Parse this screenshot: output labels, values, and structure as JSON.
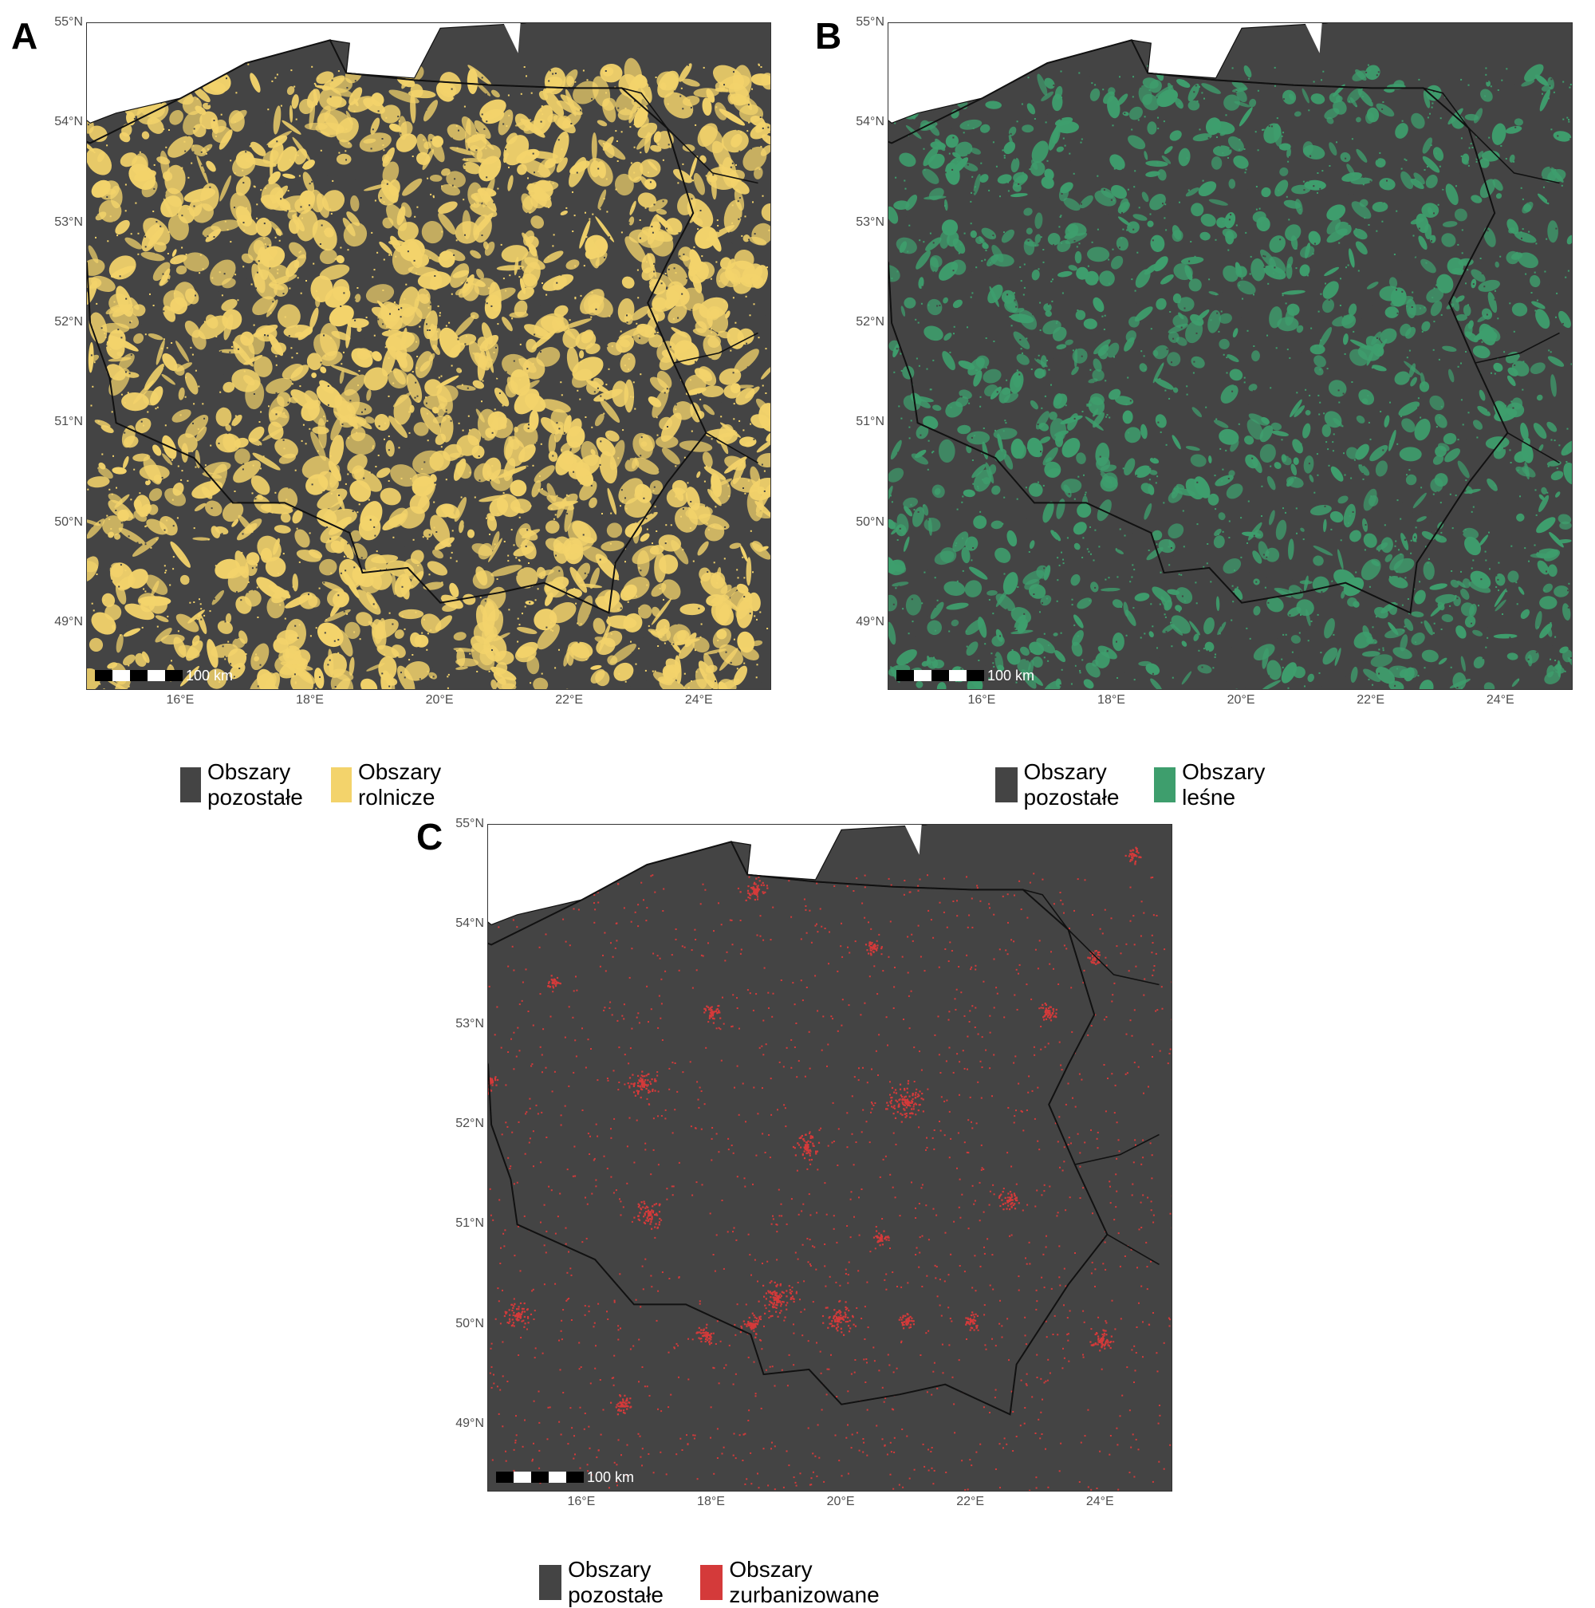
{
  "colors": {
    "other": "#444444",
    "agri": "#f3d36b",
    "forest": "#3e9e6d",
    "urban": "#d43a3a",
    "sea": "#ffffff",
    "border": "#111111"
  },
  "axis": {
    "lat_labels": [
      "55°N",
      "54°N",
      "53°N",
      "52°N",
      "51°N",
      "50°N",
      "49°N"
    ],
    "lon_labels": [
      "16°E",
      "18°E",
      "20°E",
      "22°E",
      "24°E"
    ]
  },
  "scale_bar_label": "100 km",
  "panels": [
    {
      "id": "A",
      "letter": "A",
      "theme": "agri",
      "legend": [
        {
          "label": "Obszary pozostałe",
          "color_key": "other"
        },
        {
          "label": "Obszary rolnicze",
          "color_key": "agri"
        }
      ]
    },
    {
      "id": "B",
      "letter": "B",
      "theme": "forest",
      "legend": [
        {
          "label": "Obszary pozostałe",
          "color_key": "other"
        },
        {
          "label": "Obszary leśne",
          "color_key": "forest"
        }
      ]
    },
    {
      "id": "C",
      "letter": "C",
      "theme": "urban",
      "legend": [
        {
          "label": "Obszary pozostałe",
          "color_key": "other"
        },
        {
          "label": "Obszary zurbanizowane",
          "color_key": "urban"
        }
      ]
    }
  ]
}
